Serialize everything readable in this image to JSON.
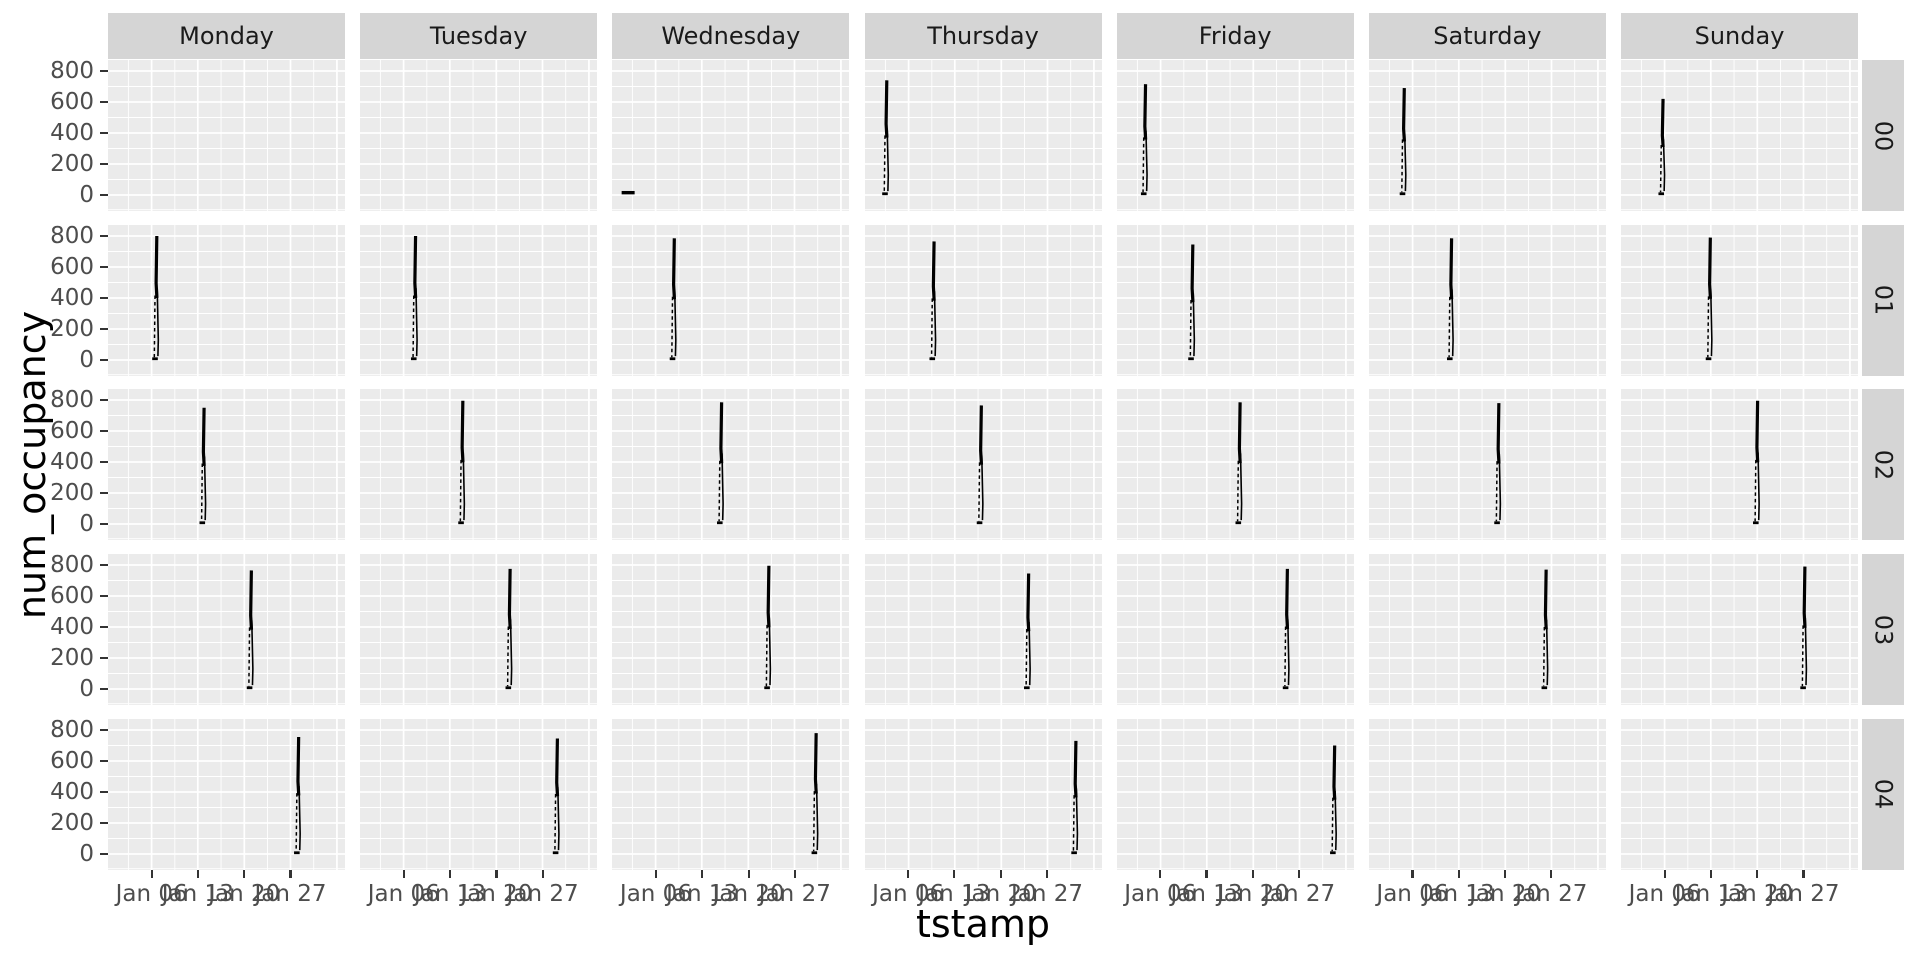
{
  "chart_data": {
    "type": "line",
    "title": "",
    "xlabel": "tstamp",
    "ylabel": "num_occupancy",
    "legend": "none",
    "grid": "on",
    "facet": {
      "cols": [
        "Monday",
        "Tuesday",
        "Wednesday",
        "Thursday",
        "Friday",
        "Saturday",
        "Sunday"
      ],
      "rows": [
        "00",
        "01",
        "02",
        "03",
        "04"
      ]
    },
    "x_ticks": {
      "labels": [
        "Jan 06",
        "Jan 13",
        "Jan 20",
        "Jan 27"
      ],
      "fractions": [
        0.184,
        0.379,
        0.575,
        0.77
      ]
    },
    "y_ticks": [
      800,
      600,
      400,
      200,
      0
    ],
    "ylim": [
      0,
      800
    ],
    "gridlines": {
      "h_major_values": [
        800,
        600,
        400,
        200,
        0
      ],
      "h_minor_values": [
        700,
        500,
        300,
        100,
        -95
      ],
      "v_major_fractions": [
        0.184,
        0.379,
        0.575,
        0.77,
        0.966
      ],
      "v_minor_fractions": [
        0.086,
        0.282,
        0.477,
        0.673,
        0.868
      ]
    },
    "facets": [
      {
        "row": "00",
        "col": "Wednesday",
        "day": 1,
        "peak": 20,
        "flat": true
      },
      {
        "row": "00",
        "col": "Thursday",
        "day": 2,
        "peak": 740
      },
      {
        "row": "00",
        "col": "Friday",
        "day": 3,
        "peak": 715
      },
      {
        "row": "00",
        "col": "Saturday",
        "day": 4,
        "peak": 690
      },
      {
        "row": "00",
        "col": "Sunday",
        "day": 5,
        "peak": 620
      },
      {
        "row": "01",
        "col": "Monday",
        "day": 6,
        "peak": 800
      },
      {
        "row": "01",
        "col": "Tuesday",
        "day": 7,
        "peak": 800
      },
      {
        "row": "01",
        "col": "Wednesday",
        "day": 8,
        "peak": 785
      },
      {
        "row": "01",
        "col": "Thursday",
        "day": 9,
        "peak": 765
      },
      {
        "row": "01",
        "col": "Friday",
        "day": 10,
        "peak": 745
      },
      {
        "row": "01",
        "col": "Saturday",
        "day": 11,
        "peak": 785
      },
      {
        "row": "01",
        "col": "Sunday",
        "day": 12,
        "peak": 790
      },
      {
        "row": "02",
        "col": "Monday",
        "day": 13,
        "peak": 750
      },
      {
        "row": "02",
        "col": "Tuesday",
        "day": 14,
        "peak": 795
      },
      {
        "row": "02",
        "col": "Wednesday",
        "day": 15,
        "peak": 785
      },
      {
        "row": "02",
        "col": "Thursday",
        "day": 16,
        "peak": 765
      },
      {
        "row": "02",
        "col": "Friday",
        "day": 17,
        "peak": 785
      },
      {
        "row": "02",
        "col": "Saturday",
        "day": 18,
        "peak": 780
      },
      {
        "row": "02",
        "col": "Sunday",
        "day": 19,
        "peak": 795
      },
      {
        "row": "03",
        "col": "Monday",
        "day": 20,
        "peak": 765
      },
      {
        "row": "03",
        "col": "Tuesday",
        "day": 21,
        "peak": 775
      },
      {
        "row": "03",
        "col": "Wednesday",
        "day": 22,
        "peak": 795
      },
      {
        "row": "03",
        "col": "Thursday",
        "day": 23,
        "peak": 745
      },
      {
        "row": "03",
        "col": "Friday",
        "day": 24,
        "peak": 775
      },
      {
        "row": "03",
        "col": "Saturday",
        "day": 25,
        "peak": 770
      },
      {
        "row": "03",
        "col": "Sunday",
        "day": 26,
        "peak": 790
      },
      {
        "row": "04",
        "col": "Monday",
        "day": 27,
        "peak": 755
      },
      {
        "row": "04",
        "col": "Tuesday",
        "day": 28,
        "peak": 745
      },
      {
        "row": "04",
        "col": "Wednesday",
        "day": 29,
        "peak": 780
      },
      {
        "row": "04",
        "col": "Thursday",
        "day": 30,
        "peak": 730
      },
      {
        "row": "04",
        "col": "Friday",
        "day": 31,
        "peak": 700
      }
    ],
    "colors": {
      "panel_bg": "#EBEBEB",
      "strip_bg": "#D5D5D5",
      "gridline": "#FFFFFF",
      "data": "#000000",
      "axis_text": "#4D4D4D",
      "tick_mark": "#333333",
      "title_text": "#000000"
    }
  }
}
